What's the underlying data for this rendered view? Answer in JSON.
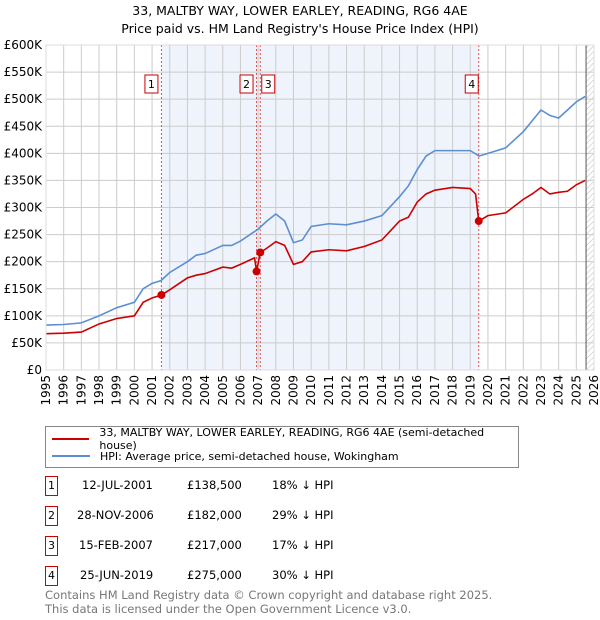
{
  "title": "33, MALTBY WAY, LOWER EARLEY, READING, RG6 4AE",
  "subtitle": "Price paid vs. HM Land Registry's House Price Index (HPI)",
  "colors": {
    "property": "#cc0000",
    "hpi": "#5b8fd0",
    "shade": "#eef3fc",
    "grid": "#cccccc"
  },
  "chart_data": {
    "type": "line",
    "xlim": [
      1995,
      2026
    ],
    "ylim": [
      0,
      600000
    ],
    "yticks": [
      {
        "v": 0,
        "l": "£0"
      },
      {
        "v": 50000,
        "l": "£50K"
      },
      {
        "v": 100000,
        "l": "£100K"
      },
      {
        "v": 150000,
        "l": "£150K"
      },
      {
        "v": 200000,
        "l": "£200K"
      },
      {
        "v": 250000,
        "l": "£250K"
      },
      {
        "v": 300000,
        "l": "£300K"
      },
      {
        "v": 350000,
        "l": "£350K"
      },
      {
        "v": 400000,
        "l": "£400K"
      },
      {
        "v": 450000,
        "l": "£450K"
      },
      {
        "v": 500000,
        "l": "£500K"
      },
      {
        "v": 550000,
        "l": "£550K"
      },
      {
        "v": 600000,
        "l": "£600K"
      }
    ],
    "xticks": [
      1995,
      1996,
      1997,
      1998,
      1999,
      2000,
      2001,
      2002,
      2003,
      2004,
      2005,
      2006,
      2007,
      2008,
      2009,
      2010,
      2011,
      2012,
      2013,
      2014,
      2015,
      2016,
      2017,
      2018,
      2019,
      2020,
      2021,
      2022,
      2023,
      2024,
      2025,
      2026
    ],
    "series": [
      {
        "name": "33, MALTBY WAY, LOWER EARLEY, READING, RG6 4AE (semi-detached house)",
        "color": "#cc0000",
        "x": [
          1995,
          1996,
          1997,
          1998,
          1999,
          2000,
          2000.5,
          2001,
          2001.53,
          2002,
          2003,
          2003.5,
          2004,
          2005,
          2005.5,
          2006,
          2006.8,
          2006.91,
          2007.12,
          2007.5,
          2008,
          2008.5,
          2009,
          2009.5,
          2010,
          2011,
          2012,
          2013,
          2014,
          2015,
          2015.5,
          2016,
          2016.5,
          2017,
          2018,
          2019,
          2019.3,
          2019.48,
          2020,
          2021,
          2022,
          2022.5,
          2023,
          2023.5,
          2024,
          2024.5,
          2025,
          2025.5
        ],
        "y": [
          67000,
          68000,
          70000,
          85000,
          95000,
          100000,
          125000,
          133000,
          138500,
          148000,
          170000,
          175000,
          178000,
          190000,
          188000,
          195000,
          207000,
          182000,
          217000,
          225000,
          237000,
          230000,
          195000,
          200000,
          218000,
          222000,
          220000,
          228000,
          240000,
          275000,
          282000,
          310000,
          325000,
          332000,
          337000,
          335000,
          325000,
          275000,
          285000,
          290000,
          315000,
          325000,
          337000,
          325000,
          328000,
          330000,
          342000,
          350000
        ]
      },
      {
        "name": "HPI: Average price, semi-detached house, Wokingham",
        "color": "#5b8fd0",
        "x": [
          1995,
          1996,
          1997,
          1998,
          1999,
          2000,
          2000.5,
          2001,
          2001.5,
          2002,
          2003,
          2003.5,
          2004,
          2005,
          2005.5,
          2006,
          2007,
          2007.5,
          2008,
          2008.5,
          2009,
          2009.5,
          2010,
          2011,
          2012,
          2013,
          2014,
          2015,
          2015.5,
          2016,
          2016.5,
          2017,
          2018,
          2019,
          2019.5,
          2020,
          2021,
          2022,
          2022.5,
          2023,
          2023.5,
          2024,
          2024.5,
          2025,
          2025.5
        ],
        "y": [
          83000,
          84000,
          87000,
          100000,
          115000,
          125000,
          150000,
          160000,
          165000,
          180000,
          200000,
          212000,
          215000,
          230000,
          230000,
          238000,
          260000,
          275000,
          288000,
          275000,
          235000,
          240000,
          265000,
          270000,
          268000,
          275000,
          285000,
          320000,
          340000,
          370000,
          395000,
          405000,
          405000,
          405000,
          395000,
          400000,
          410000,
          440000,
          460000,
          480000,
          470000,
          465000,
          480000,
          495000,
          505000
        ]
      }
    ],
    "sales": [
      {
        "n": "1",
        "date": "12-JUL-2001",
        "x": 2001.53,
        "price": 138500,
        "price_label": "£138,500",
        "hpi": "18% ↓ HPI"
      },
      {
        "n": "2",
        "date": "28-NOV-2006",
        "x": 2006.91,
        "price": 182000,
        "price_label": "£182,000",
        "hpi": "29% ↓ HPI"
      },
      {
        "n": "3",
        "date": "15-FEB-2007",
        "x": 2007.12,
        "price": 217000,
        "price_label": "£217,000",
        "hpi": "17% ↓ HPI"
      },
      {
        "n": "4",
        "date": "25-JUN-2019",
        "x": 2019.48,
        "price": 275000,
        "price_label": "£275,000",
        "hpi": "30% ↓ HPI"
      }
    ]
  },
  "legend": {
    "property": "33, MALTBY WAY, LOWER EARLEY, READING, RG6 4AE (semi-detached house)",
    "hpi": "HPI: Average price, semi-detached house, Wokingham"
  },
  "footer": [
    "Contains HM Land Registry data © Crown copyright and database right 2025.",
    "This data is licensed under the Open Government Licence v3.0."
  ]
}
